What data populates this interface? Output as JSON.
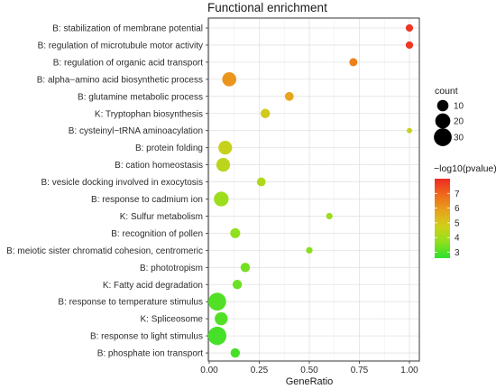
{
  "chart_data": {
    "type": "scatter",
    "title": "Functional enrichment",
    "xlabel": "GeneRatio",
    "ylabel": "",
    "xlim": [
      0.0,
      1.0
    ],
    "x_ticks": [
      0.0,
      0.25,
      0.5,
      0.75,
      1.0
    ],
    "x_tick_labels": [
      "0.00",
      "0.25",
      "0.50",
      "0.75",
      "1.00"
    ],
    "grid": true,
    "legend_position": "right",
    "points": [
      {
        "term": "B: stabilization of membrane potential",
        "gene_ratio": 1.0,
        "count": 3,
        "neg_log10_p": 7.8
      },
      {
        "term": "B: regulation of microtubule motor activity",
        "gene_ratio": 1.0,
        "count": 3,
        "neg_log10_p": 7.8
      },
      {
        "term": "B: regulation of organic acid transport",
        "gene_ratio": 0.72,
        "count": 4,
        "neg_log10_p": 6.5
      },
      {
        "term": "B: alpha−amino acid biosynthetic process",
        "gene_ratio": 0.1,
        "count": 17,
        "neg_log10_p": 6.1
      },
      {
        "term": "B: glutamine metabolic process",
        "gene_ratio": 0.4,
        "count": 5,
        "neg_log10_p": 5.8
      },
      {
        "term": "K: Tryptophan biosynthesis",
        "gene_ratio": 0.28,
        "count": 6,
        "neg_log10_p": 4.9
      },
      {
        "term": "B: cysteinyl−tRNA aminoacylation",
        "gene_ratio": 1.0,
        "count": 1,
        "neg_log10_p": 4.6
      },
      {
        "term": "B: protein folding",
        "gene_ratio": 0.08,
        "count": 16,
        "neg_log10_p": 4.6
      },
      {
        "term": "B: cation homeostasis",
        "gene_ratio": 0.07,
        "count": 16,
        "neg_log10_p": 4.4
      },
      {
        "term": "B: vesicle docking involved in exocytosis",
        "gene_ratio": 0.26,
        "count": 5,
        "neg_log10_p": 4.2
      },
      {
        "term": "B: response to cadmium ion",
        "gene_ratio": 0.06,
        "count": 19,
        "neg_log10_p": 3.9
      },
      {
        "term": "K: Sulfur metabolism",
        "gene_ratio": 0.6,
        "count": 2,
        "neg_log10_p": 3.9
      },
      {
        "term": "B: recognition of pollen",
        "gene_ratio": 0.13,
        "count": 7,
        "neg_log10_p": 3.7
      },
      {
        "term": "B: meiotic sister chromatid cohesion, centromeric",
        "gene_ratio": 0.5,
        "count": 2,
        "neg_log10_p": 3.6
      },
      {
        "term": "B: phototropism",
        "gene_ratio": 0.18,
        "count": 6,
        "neg_log10_p": 3.4
      },
      {
        "term": "K: Fatty acid degradation",
        "gene_ratio": 0.14,
        "count": 6,
        "neg_log10_p": 3.3
      },
      {
        "term": "B: response to temperature stimulus",
        "gene_ratio": 0.04,
        "count": 30,
        "neg_log10_p": 3.0
      },
      {
        "term": "K: Spliceosome",
        "gene_ratio": 0.06,
        "count": 14,
        "neg_log10_p": 3.0
      },
      {
        "term": "B: response to light stimulus",
        "gene_ratio": 0.04,
        "count": 32,
        "neg_log10_p": 2.9
      },
      {
        "term": "B: phosphate ion transport",
        "gene_ratio": 0.13,
        "count": 6,
        "neg_log10_p": 2.9
      }
    ],
    "size_legend": {
      "title": "count",
      "values": [
        10,
        20,
        30
      ],
      "labels": [
        "10",
        "20",
        "30"
      ]
    },
    "color_legend": {
      "title": "−log10(pvalue)",
      "min": 2.6,
      "max": 8.0,
      "ticks": [
        3,
        4,
        5,
        6,
        7
      ],
      "tick_labels": [
        "3",
        "4",
        "5",
        "6",
        "7"
      ],
      "colors": [
        "#2ce02c",
        "#8fe01c",
        "#cfd01a",
        "#e8a21c",
        "#ef6a1c",
        "#ee2a24"
      ]
    }
  }
}
